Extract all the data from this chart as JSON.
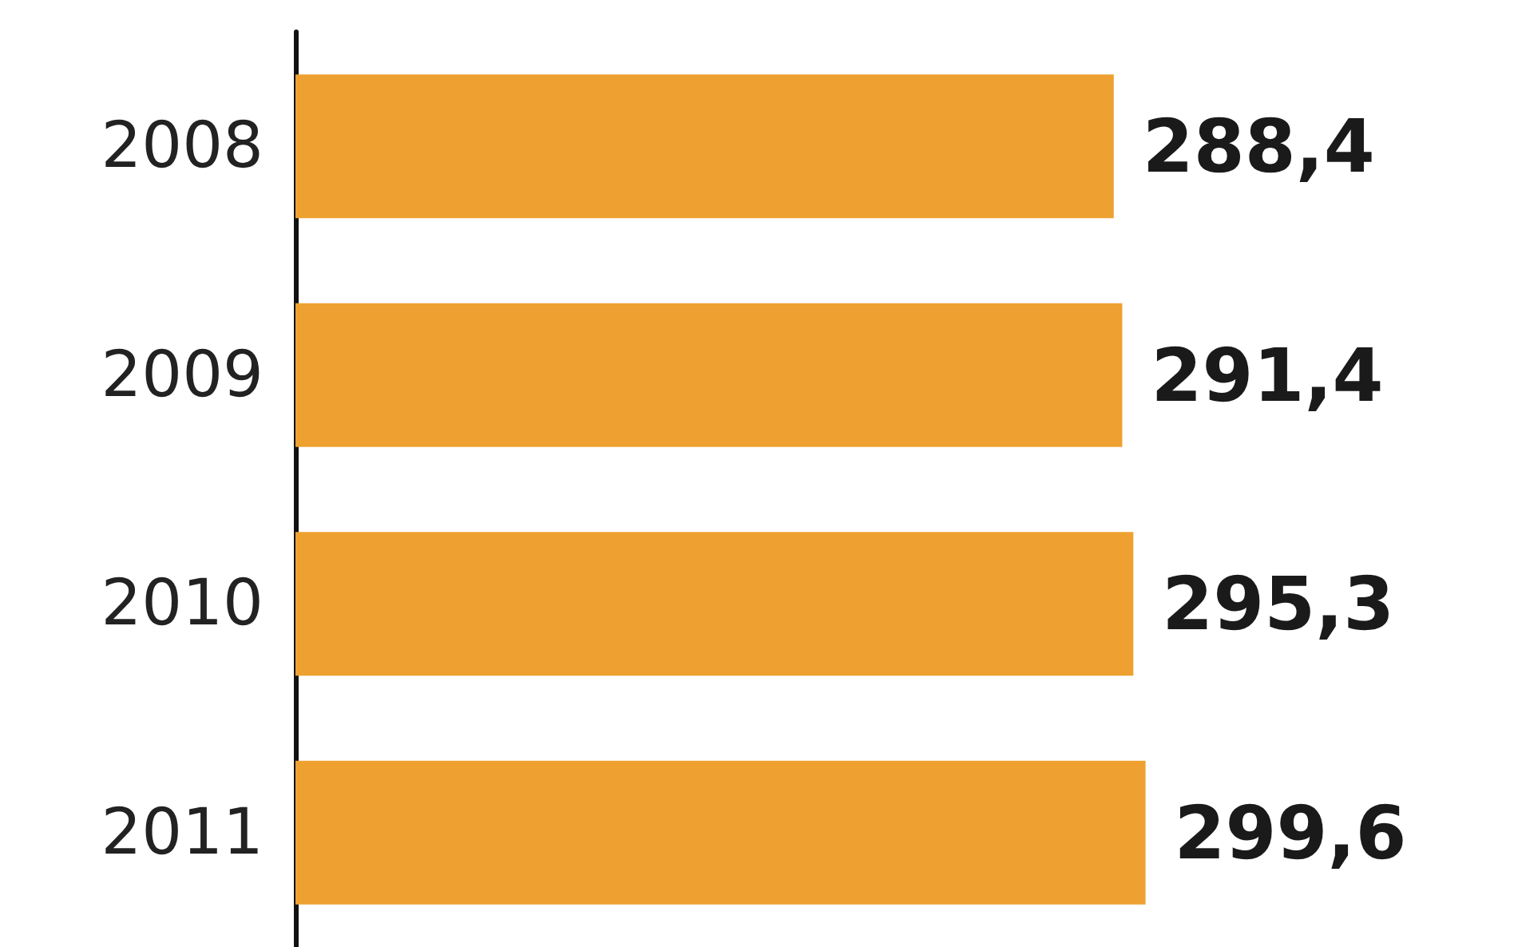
{
  "chart_data": {
    "type": "bar",
    "orientation": "horizontal",
    "categories": [
      "2008",
      "2009",
      "2010",
      "2011"
    ],
    "values": [
      288.4,
      291.4,
      295.3,
      299.6
    ],
    "color": "#eea130",
    "value_labels": [
      "288,4",
      "291,4",
      "295,3",
      "299,6"
    ],
    "tick_labels": "y",
    "grid": false
  }
}
